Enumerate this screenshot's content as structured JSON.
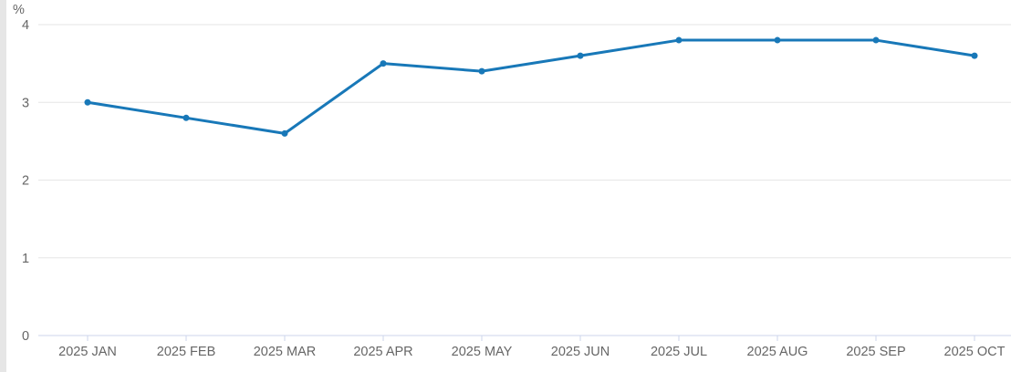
{
  "chart_data": {
    "type": "line",
    "categories": [
      "2025 JAN",
      "2025 FEB",
      "2025 MAR",
      "2025 APR",
      "2025 MAY",
      "2025 JUN",
      "2025 JUL",
      "2025 AUG",
      "2025 SEP",
      "2025 OCT"
    ],
    "values": [
      3.0,
      2.8,
      2.6,
      3.5,
      3.4,
      3.6,
      3.8,
      3.8,
      3.8,
      3.6
    ],
    "title": "",
    "xlabel": "",
    "ylabel": "%",
    "ylim": [
      0,
      4
    ],
    "yticks": [
      0,
      1,
      2,
      3,
      4
    ],
    "grid": true,
    "legend": "none",
    "marker": "circle"
  },
  "colors": {
    "series_line": "#1878b8",
    "marker_fill": "#1878b8",
    "gridline": "#e6e6e6",
    "axis_line": "#ccd6eb",
    "tick": "#ccd6eb",
    "label_text": "#666666",
    "edge_strip": "#e6e6e6",
    "background": "#ffffff"
  }
}
